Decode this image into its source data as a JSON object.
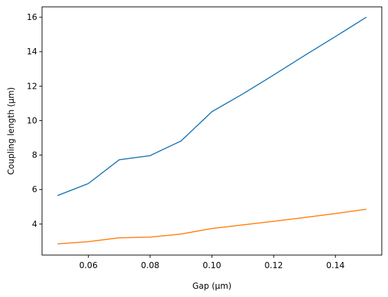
{
  "chart_data": {
    "type": "line",
    "title": "",
    "xlabel": "Gap (μm)",
    "ylabel": "Coupling length (μm)",
    "xlim": [
      0.045,
      0.155
    ],
    "ylim": [
      2.2,
      16.6
    ],
    "xticks": [
      0.06,
      0.08,
      0.1,
      0.12,
      0.14
    ],
    "xtick_labels": [
      "0.06",
      "0.08",
      "0.10",
      "0.12",
      "0.14"
    ],
    "yticks": [
      4,
      6,
      8,
      10,
      12,
      14,
      16
    ],
    "ytick_labels": [
      "4",
      "6",
      "8",
      "10",
      "12",
      "14",
      "16"
    ],
    "grid": false,
    "legend": "none",
    "series": [
      {
        "color": "#1f77b4",
        "x": [
          0.05,
          0.06,
          0.07,
          0.08,
          0.09,
          0.1,
          0.11,
          0.12,
          0.13,
          0.14,
          0.15
        ],
        "y": [
          5.65,
          6.35,
          7.73,
          7.97,
          8.82,
          10.52,
          11.55,
          12.65,
          13.78,
          14.88,
          16.0
        ]
      },
      {
        "color": "#ff7f0e",
        "x": [
          0.05,
          0.06,
          0.07,
          0.08,
          0.09,
          0.1,
          0.11,
          0.12,
          0.13,
          0.14,
          0.15
        ],
        "y": [
          2.85,
          2.98,
          3.2,
          3.24,
          3.42,
          3.74,
          3.95,
          4.16,
          4.38,
          4.61,
          4.86
        ]
      }
    ]
  }
}
